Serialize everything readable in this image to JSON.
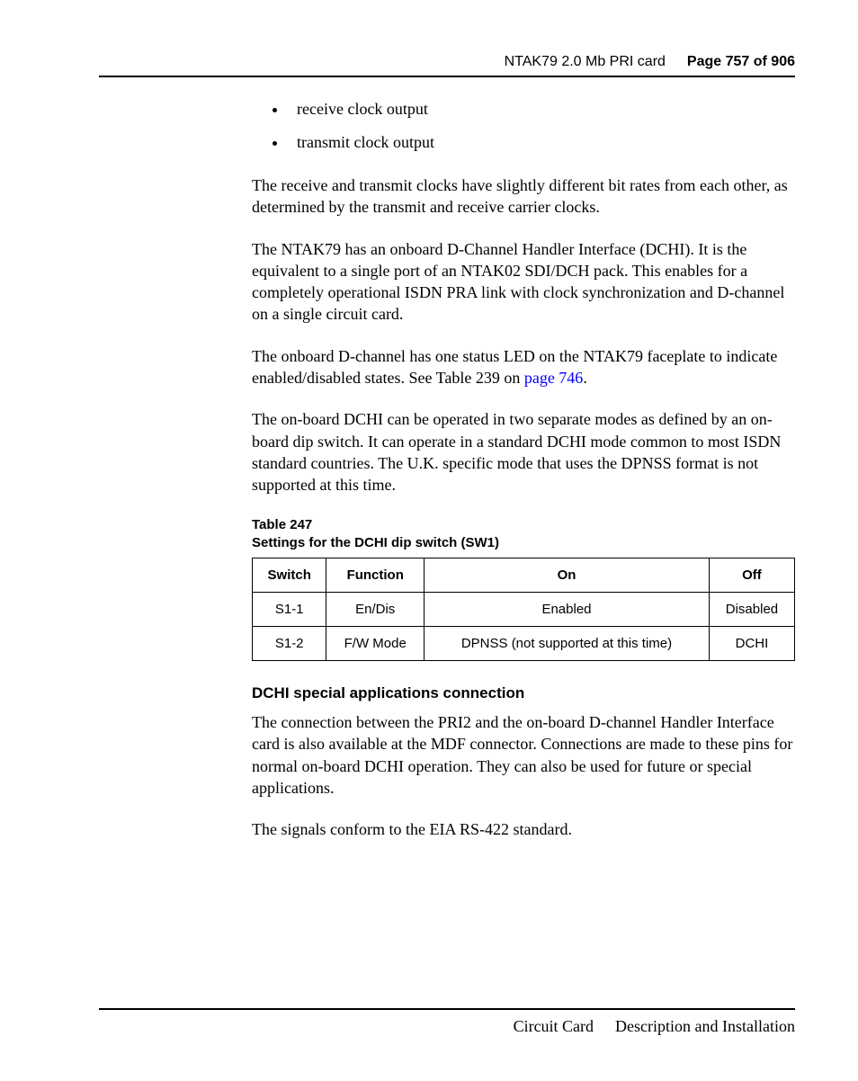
{
  "header": {
    "card_name": "NTAK79 2.0 Mb PRI card",
    "page_label": "Page 757 of 906"
  },
  "bullets": [
    "receive clock output",
    "transmit clock output"
  ],
  "paragraphs": {
    "p1": "The receive and transmit clocks have slightly different bit rates from each other, as determined by the transmit and receive carrier clocks.",
    "p2": "The NTAK79 has an onboard D-Channel Handler Interface (DCHI). It is the equivalent to a single port of an NTAK02 SDI/DCH pack. This enables for a completely operational ISDN PRA link with clock synchronization and D-channel on a single circuit card.",
    "p3_pre": "The onboard D-channel has one status LED on the NTAK79 faceplate to indicate enabled/disabled states. See Table 239 on ",
    "p3_link": "page 746",
    "p3_post": ".",
    "p4": "The on-board DCHI can be operated in two separate modes as defined by an on-board dip switch. It can operate in a standard DCHI mode common to most ISDN standard countries. The U.K. specific mode that uses the DPNSS format is not supported at this time.",
    "p5": "The connection between the PRI2 and the on-board D-channel Handler Interface card is also available at the MDF connector. Connections are made to these pins for normal on-board DCHI operation. They can also be used for future or special applications.",
    "p6": "The signals conform to the EIA RS-422 standard."
  },
  "table": {
    "caption_line1": "Table 247",
    "caption_line2": "Settings for the DCHI dip switch (SW1)",
    "columns": [
      "Switch",
      "Function",
      "On",
      "Off"
    ],
    "rows": [
      [
        "S1-1",
        "En/Dis",
        "Enabled",
        "Disabled"
      ],
      [
        "S1-2",
        "F/W Mode",
        "DPNSS (not supported at this time)",
        "DCHI"
      ]
    ]
  },
  "subhead": "DCHI special applications connection",
  "footer": {
    "section": "Circuit Card",
    "title": "Description and Installation"
  },
  "colors": {
    "text": "#000000",
    "link": "#0000ff",
    "rule": "#000000",
    "background": "#ffffff"
  },
  "fonts": {
    "body_family": "Times New Roman",
    "ui_family": "Arial",
    "body_size_pt": 14,
    "ui_size_pt": 11,
    "header_size_pt": 12
  }
}
